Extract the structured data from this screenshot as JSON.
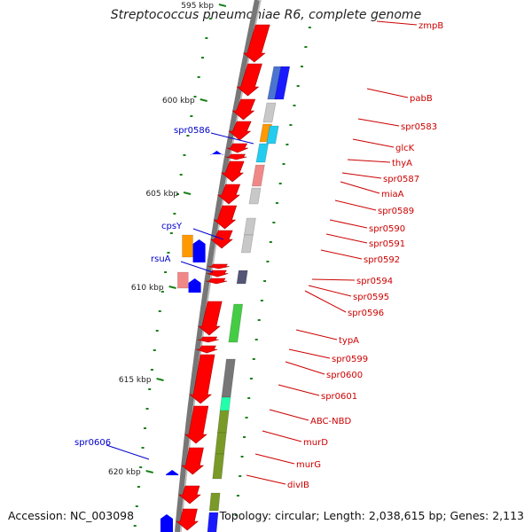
{
  "title": "Streptococcus pneumoniae R6, complete genome",
  "footer": {
    "accession": "Accession: NC_003098",
    "summary": "Topology: circular; Length: 2,038,615 bp; Genes: 2,113"
  },
  "colors": {
    "backbone": "#777777",
    "cds": "#ff0000",
    "rev_gene": "#0000ff",
    "tick": "#1a7f1a",
    "feature_label": "#cc0000",
    "rev_label": "#0000cc"
  },
  "scale": {
    "ticks": [
      {
        "label": "595 kbp"
      },
      {
        "label": "600 kbp"
      },
      {
        "label": "605 kbp"
      },
      {
        "label": "610 kbp"
      },
      {
        "label": "615 kbp"
      },
      {
        "label": "620 kbp"
      }
    ]
  },
  "labels_right": [
    "zmpB",
    "pabB",
    "spr0583",
    "glcK",
    "thyA",
    "spr0587",
    "miaA",
    "spr0589",
    "spr0590",
    "spr0591",
    "spr0592",
    "spr0594",
    "spr0595",
    "spr0596",
    "typA",
    "spr0599",
    "spr0600",
    "spr0601",
    "ABC-NBD",
    "murD",
    "murG",
    "divIB"
  ],
  "labels_left": [
    "spr0586",
    "cpsY",
    "rsuA",
    "spr0606"
  ],
  "cog_blocks": [
    {
      "color": "#4a74d0"
    },
    {
      "color": "#1a1aff"
    },
    {
      "color": "#c8c8c8"
    },
    {
      "color": "#ff9900"
    },
    {
      "color": "#22ccee"
    },
    {
      "color": "#22ccee"
    },
    {
      "color": "#f08888"
    },
    {
      "color": "#c8c8c8"
    },
    {
      "color": "#c8c8c8"
    },
    {
      "color": "#c8c8c8"
    },
    {
      "color": "#555577"
    },
    {
      "color": "#44cc44"
    },
    {
      "color": "#777777"
    },
    {
      "color": "#22ffaa"
    },
    {
      "color": "#7a9a28"
    },
    {
      "color": "#7a9a28"
    },
    {
      "color": "#7a9a28"
    },
    {
      "color": "#7a9a28"
    },
    {
      "color": "#1a1aff"
    }
  ],
  "left_blocks": [
    {
      "color": "#ff9900"
    },
    {
      "color": "#f08888"
    }
  ]
}
